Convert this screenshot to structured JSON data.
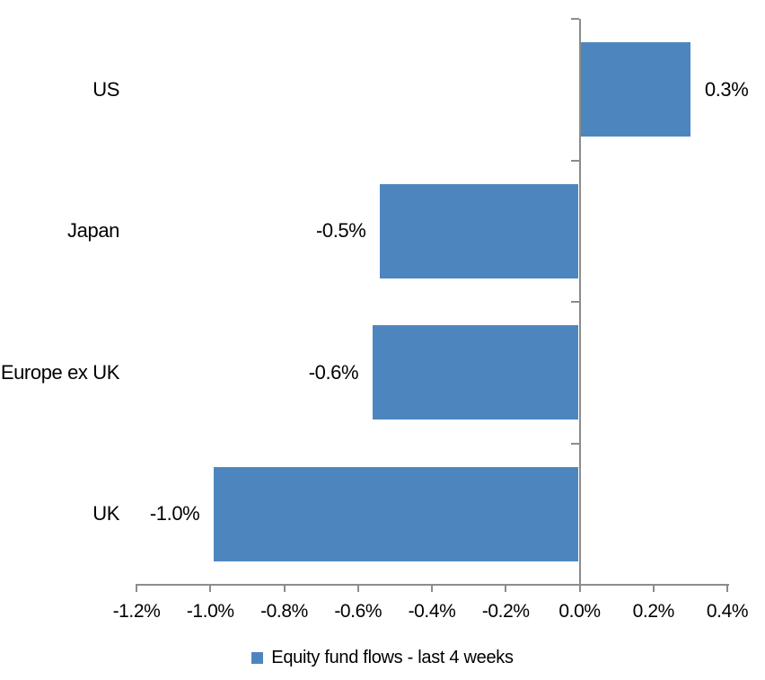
{
  "chart_data": {
    "type": "bar",
    "orientation": "horizontal",
    "title": "",
    "categories": [
      "US",
      "Japan",
      "Europe ex UK",
      "UK"
    ],
    "series": [
      {
        "name": "Equity fund flows - last 4 weeks",
        "values": [
          0.3,
          -0.5,
          -0.6,
          -1.0
        ],
        "value_labels": [
          "0.3%",
          "-0.5%",
          "-0.6%",
          "-1.0%"
        ],
        "plot_values": [
          0.3,
          -0.54,
          -0.56,
          -0.99
        ],
        "color": "#4D86BE"
      }
    ],
    "xlabel": "",
    "ylabel": "",
    "xlim": [
      -1.2,
      0.4
    ],
    "x_tick_step": 0.2,
    "x_tick_labels": [
      "-1.2%",
      "-1.0%",
      "-0.8%",
      "-0.6%",
      "-0.4%",
      "-0.2%",
      "0.0%",
      "0.2%",
      "0.4%"
    ],
    "data_label_position": "outside-end",
    "grid": false,
    "legend_position": "bottom",
    "axis_color": "#8C8C8C",
    "text_color": "#000000",
    "background": "#FFFFFF"
  }
}
